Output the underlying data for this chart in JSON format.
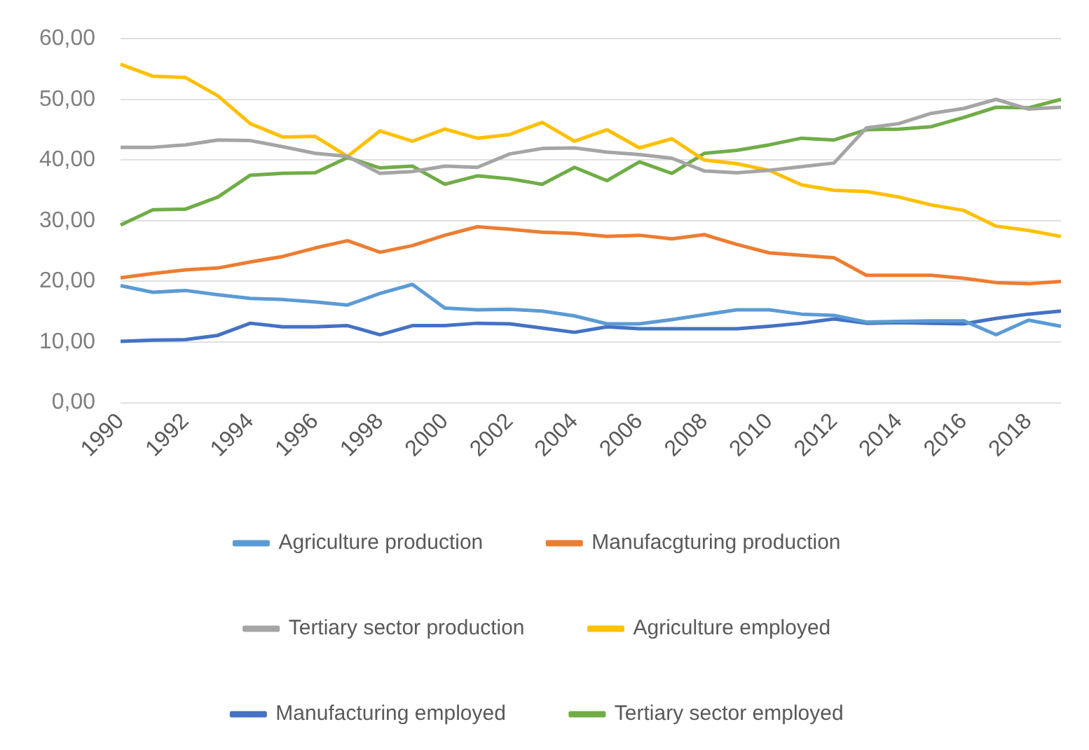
{
  "chart_data": {
    "type": "line",
    "categories": [
      "1990",
      null,
      "1992",
      null,
      "1994",
      null,
      "1996",
      null,
      "1998",
      null,
      "2000",
      null,
      "2002",
      null,
      "2004",
      null,
      "2006",
      null,
      "2008",
      null,
      "2010",
      null,
      "2012",
      null,
      "2014",
      null,
      "2016",
      null,
      "2018",
      null
    ],
    "series": [
      {
        "name": "Agriculture production",
        "color": "#5b9bd5",
        "values": [
          19.3,
          18.2,
          18.5,
          17.8,
          17.2,
          17.0,
          16.6,
          16.1,
          18.0,
          19.5,
          15.6,
          15.3,
          15.4,
          15.1,
          14.3,
          13.0,
          13.0,
          13.7,
          14.5,
          15.3,
          15.3,
          14.6,
          14.4,
          13.3,
          13.4,
          13.5,
          13.5,
          11.2,
          13.6,
          12.6
        ]
      },
      {
        "name": "Manufacgturing production",
        "color": "#ed7d31",
        "values": [
          20.6,
          21.3,
          21.9,
          22.2,
          23.2,
          24.1,
          25.5,
          26.7,
          24.8,
          25.9,
          27.6,
          29.0,
          28.6,
          28.1,
          27.9,
          27.4,
          27.6,
          27.0,
          27.7,
          26.1,
          24.7,
          24.3,
          23.9,
          21.0,
          21.0,
          21.0,
          20.5,
          19.8,
          19.6,
          20.0
        ]
      },
      {
        "name": "Tertiary sector production",
        "color": "#a5a5a5",
        "values": [
          42.1,
          42.1,
          42.5,
          43.3,
          43.2,
          42.2,
          41.1,
          40.6,
          37.8,
          38.1,
          39.0,
          38.8,
          41.0,
          41.9,
          42.0,
          41.3,
          40.9,
          40.3,
          38.2,
          37.9,
          38.3,
          38.9,
          39.5,
          45.3,
          46.0,
          47.7,
          48.5,
          50.0,
          48.4,
          48.7
        ]
      },
      {
        "name": "Agriculture employed",
        "color": "#ffc000",
        "values": [
          55.8,
          53.8,
          53.6,
          50.6,
          46.0,
          43.8,
          43.9,
          40.6,
          44.8,
          43.1,
          45.1,
          43.6,
          44.2,
          46.2,
          43.1,
          45.0,
          42.0,
          43.5,
          40.0,
          39.4,
          38.3,
          35.9,
          35.0,
          34.8,
          33.9,
          32.6,
          31.7,
          29.1,
          28.4,
          27.4
        ]
      },
      {
        "name": "Manufacturing employed",
        "color": "#4472c4",
        "values": [
          10.1,
          10.3,
          10.4,
          11.1,
          13.1,
          12.5,
          12.5,
          12.7,
          11.2,
          12.7,
          12.7,
          13.1,
          13.0,
          12.3,
          11.6,
          12.5,
          12.2,
          12.2,
          12.2,
          12.2,
          12.6,
          13.1,
          13.8,
          13.1,
          13.2,
          13.1,
          13.0,
          13.9,
          14.6,
          15.1
        ]
      },
      {
        "name": "Tertiary sector employed",
        "color": "#70ad47",
        "values": [
          29.3,
          31.8,
          31.9,
          33.9,
          37.5,
          37.8,
          37.9,
          40.4,
          38.7,
          39.0,
          36.0,
          37.4,
          36.9,
          36.0,
          38.8,
          36.6,
          39.7,
          37.8,
          41.1,
          41.6,
          42.5,
          43.6,
          43.3,
          45.0,
          45.1,
          45.5,
          47.0,
          48.7,
          48.6,
          50.0
        ]
      }
    ],
    "ylim": [
      0,
      60
    ],
    "yticks": [
      {
        "value": 0,
        "label": "0,00"
      },
      {
        "value": 10,
        "label": "10,00"
      },
      {
        "value": 20,
        "label": "20,00"
      },
      {
        "value": 30,
        "label": "30,00"
      },
      {
        "value": 40,
        "label": "40,00"
      },
      {
        "value": 50,
        "label": "50,00"
      },
      {
        "value": 60,
        "label": "60,00"
      }
    ],
    "grid": "y",
    "legend": "bottom",
    "marker": "none",
    "line_style": "solid"
  }
}
